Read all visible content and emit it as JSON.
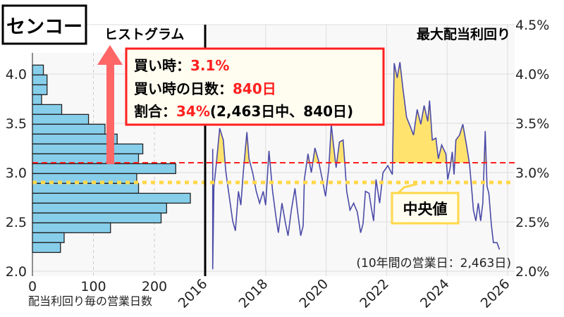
{
  "title": "センコー",
  "hist_label": "ヒストグラム",
  "right_label": "最大配当利回り",
  "annotation": {
    "line1_label": "買い時：",
    "line1_value": "3.1%",
    "line2_label": "買い時の日数：",
    "line2_value": "840日",
    "line3_label": "割合：",
    "line3_value": "34%",
    "line3_suffix": "(2,463日中、840日)"
  },
  "median_label": "中央値",
  "footnote": "(10年間の営業日：2,463日)",
  "colors": {
    "bar": "#87CEEB",
    "line": "#4B4BA8",
    "fill": "#FFE36E",
    "buy": "#FF2020",
    "median": "#FFD84A",
    "arrow": "#FF6666"
  },
  "chart_data": [
    {
      "type": "bar",
      "orientation": "horizontal",
      "xlabel": "配当利回り毎の営業日数",
      "xticks": [
        "0",
        "100",
        "200"
      ],
      "yticks": [
        "2.0",
        "2.5",
        "3.0",
        "3.5",
        "4.0"
      ],
      "ylim": [
        2.0,
        4.2
      ],
      "xlim": [
        0,
        280
      ],
      "bin_width": 0.1,
      "bin_starts": [
        3.99,
        3.89,
        3.79,
        3.69,
        3.59,
        3.49,
        3.39,
        3.29,
        3.19,
        3.09,
        2.99,
        2.89,
        2.79,
        2.69,
        2.59,
        2.49,
        2.39,
        2.29,
        2.19
      ],
      "values": [
        18,
        24,
        24,
        15,
        48,
        92,
        119,
        139,
        181,
        174,
        235,
        171,
        174,
        259,
        220,
        211,
        128,
        52,
        46
      ]
    },
    {
      "type": "line",
      "ylabel": "最大配当利回り",
      "xlim": [
        2016,
        2026
      ],
      "ylim": [
        2.0,
        4.5
      ],
      "xticks": [
        "2016",
        "2018",
        "2020",
        "2022",
        "2024",
        "2026"
      ],
      "yticks": [
        "2.0%",
        "2.5%",
        "3.0%",
        "3.5%",
        "4.0%",
        "4.5%"
      ],
      "buy_threshold": 3.1,
      "median": 2.9,
      "x": [
        2016.25,
        2016.25,
        2016.29,
        2016.37,
        2016.48,
        2016.6,
        2016.68,
        2016.75,
        2016.91,
        2017.0,
        2017.1,
        2017.18,
        2017.26,
        2017.38,
        2017.45,
        2017.57,
        2017.69,
        2017.8,
        2017.92,
        2018.0,
        2018.11,
        2018.23,
        2018.35,
        2018.42,
        2018.54,
        2018.66,
        2018.74,
        2018.85,
        2018.97,
        2019.05,
        2019.16,
        2019.24,
        2019.28,
        2019.4,
        2019.51,
        2019.63,
        2019.75,
        2019.86,
        2019.98,
        2020.09,
        2020.17,
        2020.25,
        2020.33,
        2020.44,
        2020.56,
        2020.62,
        2020.68,
        2020.79,
        2020.91,
        2021.03,
        2021.14,
        2021.22,
        2021.3,
        2021.42,
        2021.49,
        2021.57,
        2021.65,
        2021.77,
        2021.88,
        2022.04,
        2022.19,
        2022.25,
        2022.35,
        2022.44,
        2022.54,
        2022.66,
        2022.78,
        2022.89,
        2023.01,
        2023.13,
        2023.24,
        2023.36,
        2023.42,
        2023.51,
        2023.63,
        2023.71,
        2023.82,
        2023.96,
        2024.02,
        2024.1,
        2024.17,
        2024.23,
        2024.29,
        2024.41,
        2024.52,
        2024.64,
        2024.74,
        2024.8,
        2024.87,
        2024.95,
        2025.03,
        2025.11,
        2025.18,
        2025.26,
        2025.32,
        2025.38,
        2025.46,
        2025.53,
        2025.65,
        2025.73
      ],
      "y": [
        3.24,
        2.02,
        2.86,
        3.09,
        3.45,
        3.33,
        3.02,
        2.86,
        2.51,
        2.41,
        2.81,
        2.67,
        3.0,
        3.41,
        3.14,
        3.0,
        2.81,
        2.69,
        2.81,
        2.67,
        3.22,
        2.81,
        2.53,
        2.39,
        2.69,
        2.48,
        2.36,
        2.62,
        2.84,
        2.62,
        2.36,
        2.46,
        2.93,
        3.19,
        3.0,
        3.25,
        3.12,
        2.95,
        2.76,
        3.05,
        3.49,
        3.26,
        3.05,
        3.31,
        3.33,
        3.09,
        2.81,
        2.62,
        2.69,
        2.6,
        2.39,
        2.48,
        2.81,
        2.79,
        2.65,
        2.51,
        2.93,
        2.69,
        3.0,
        3.07,
        2.98,
        4.11,
        3.96,
        4.12,
        3.85,
        3.56,
        3.47,
        3.38,
        3.64,
        3.49,
        3.68,
        3.52,
        3.73,
        3.33,
        3.35,
        3.14,
        3.28,
        3.19,
        2.93,
        3.05,
        3.21,
        2.98,
        3.33,
        3.38,
        3.49,
        3.28,
        3.09,
        2.88,
        2.62,
        2.51,
        2.69,
        2.51,
        2.69,
        3.42,
        2.86,
        2.79,
        2.48,
        2.29,
        2.29,
        2.22
      ]
    }
  ]
}
